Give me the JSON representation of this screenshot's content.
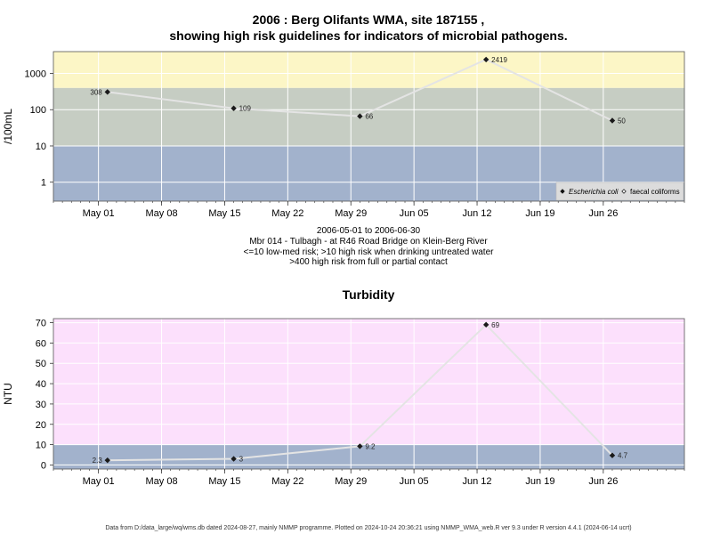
{
  "page": {
    "title_line1": "2006 : Berg Olifants WMA, site 187155 ,",
    "title_line2": "showing high risk guidelines for indicators of microbial pathogens.",
    "date_range": "2006-05-01 to 2006-06-30",
    "site_desc": "Mbr 014 - Tulbagh - at R46 Road Bridge on Klein-Berg River",
    "guideline1": "<=10 low-med risk; >10 high risk when drinking untreated water",
    "guideline2": ">400 high risk from full or partial contact",
    "footer": "Data from D:/data_large/wq/wms.db dated 2024-08-27, mainly NMMP programme. Plotted on 2024-10-24 20:36:21 using NMMP_WMA_web.R ver 9.3 under R version 4.4.1 (2024-06-14 ucrt)"
  },
  "chart_data": [
    {
      "type": "line",
      "ylabel": "/100mL",
      "yscale": "log",
      "ylim": [
        0.3,
        4000
      ],
      "yticks": [
        1,
        10,
        100,
        1000
      ],
      "ytick_labels": [
        "1",
        "10",
        "100",
        "1000"
      ],
      "xlim": [
        "2006-04-26",
        "2006-07-05"
      ],
      "xticks": [
        "2006-05-01",
        "2006-05-08",
        "2006-05-15",
        "2006-05-22",
        "2006-05-29",
        "2006-06-05",
        "2006-06-12",
        "2006-06-19",
        "2006-06-26"
      ],
      "xtick_labels": [
        "May 01",
        "May 08",
        "May 15",
        "May 22",
        "May 29",
        "Jun 05",
        "Jun 12",
        "Jun 19",
        "Jun 26"
      ],
      "bands": [
        {
          "from": 0.3,
          "to": 10,
          "color": "#a2b2cc"
        },
        {
          "from": 10,
          "to": 400,
          "color": "#c6cdc3"
        },
        {
          "from": 400,
          "to": 4000,
          "color": "#fcf6c6"
        }
      ],
      "grid": true,
      "legend_position": "bottom-right",
      "series": [
        {
          "name": "Escherichia coli",
          "marker": "filled-diamond",
          "x": [
            "2006-05-02",
            "2006-05-16",
            "2006-05-30",
            "2006-06-13",
            "2006-06-27"
          ],
          "values": [
            308,
            109,
            66,
            2419,
            50
          ],
          "labels": [
            "308",
            "109",
            "66",
            "2419",
            "50"
          ]
        }
      ],
      "legend": [
        {
          "label": "Escherichia coli",
          "marker": "filled-diamond"
        },
        {
          "label": "faecal coliforms",
          "marker": "open-diamond"
        }
      ]
    },
    {
      "type": "line",
      "title": "Turbidity",
      "ylabel": "NTU",
      "yscale": "linear",
      "ylim": [
        -2,
        72
      ],
      "yticks": [
        0,
        10,
        20,
        30,
        40,
        50,
        60,
        70
      ],
      "ytick_labels": [
        "0",
        "10",
        "20",
        "30",
        "40",
        "50",
        "60",
        "70"
      ],
      "xlim": [
        "2006-04-26",
        "2006-07-05"
      ],
      "xticks": [
        "2006-05-01",
        "2006-05-08",
        "2006-05-15",
        "2006-05-22",
        "2006-05-29",
        "2006-06-05",
        "2006-06-12",
        "2006-06-19",
        "2006-06-26"
      ],
      "xtick_labels": [
        "May 01",
        "May 08",
        "May 15",
        "May 22",
        "May 29",
        "Jun 05",
        "Jun 12",
        "Jun 19",
        "Jun 26"
      ],
      "bands": [
        {
          "from": -2,
          "to": 10,
          "color": "#a2b2cc"
        },
        {
          "from": 10,
          "to": 72,
          "color": "#fce0fc"
        }
      ],
      "grid": true,
      "series": [
        {
          "marker": "filled-diamond",
          "x": [
            "2006-05-02",
            "2006-05-16",
            "2006-05-30",
            "2006-06-13",
            "2006-06-27"
          ],
          "values": [
            2.3,
            3,
            9.2,
            69,
            4.7
          ],
          "labels": [
            "2.3",
            "3",
            "9.2",
            "69",
            "4.7"
          ]
        }
      ]
    }
  ]
}
